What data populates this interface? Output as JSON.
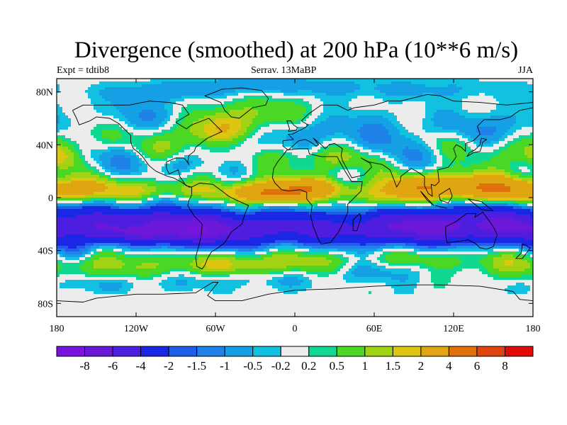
{
  "title": "Divergence (smoothed) at 200 hPa (10**6 m/s)",
  "subtitle_left": "Expt = tdtib8",
  "subtitle_center": "Serrav.  13MaBP",
  "subtitle_right": "JJA",
  "map": {
    "projection": "cylindrical-equidistant",
    "lon_range": [
      -180,
      180
    ],
    "lat_range": [
      -90,
      90
    ],
    "lat_ticks": [
      {
        "lat": 80,
        "label": "80N"
      },
      {
        "lat": 40,
        "label": "40N"
      },
      {
        "lat": 0,
        "label": "0"
      },
      {
        "lat": -40,
        "label": "40S"
      },
      {
        "lat": -80,
        "label": "80S"
      }
    ],
    "lon_ticks": [
      {
        "lon": -180,
        "label": "180"
      },
      {
        "lon": -120,
        "label": "120W"
      },
      {
        "lon": -60,
        "label": "60W"
      },
      {
        "lon": 0,
        "label": "0"
      },
      {
        "lon": 60,
        "label": "60E"
      },
      {
        "lon": 120,
        "label": "120E"
      },
      {
        "lon": 180,
        "label": "180"
      }
    ]
  },
  "colorbar": {
    "colors": [
      "#7a12e0",
      "#6b18d8",
      "#4d1ee0",
      "#1a28e6",
      "#1f5ee8",
      "#1f82e8",
      "#15a0e6",
      "#12c0e0",
      "#ececec",
      "#10d890",
      "#4ad824",
      "#a2d214",
      "#dcc612",
      "#e0a612",
      "#e0720e",
      "#e0440e",
      "#e40808"
    ],
    "labels": [
      "-8",
      "-6",
      "-4",
      "-2",
      "-1.5",
      "-1",
      "-0.5",
      "-0.2",
      "0.2",
      "0.5",
      "1",
      "1.5",
      "2",
      "4",
      "6",
      "8"
    ]
  },
  "coastline_color": "#000000"
}
